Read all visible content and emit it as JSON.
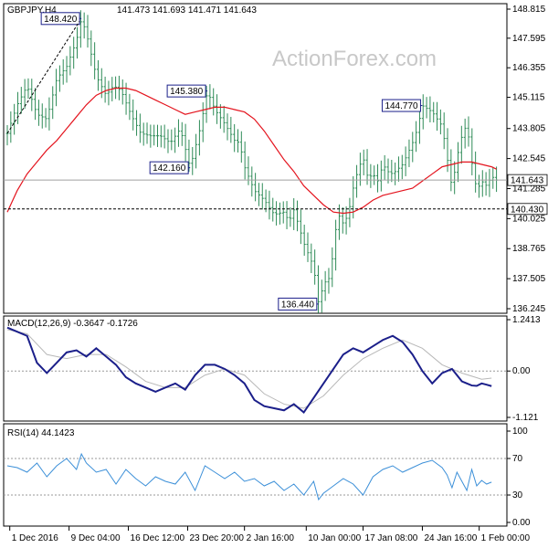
{
  "header": {
    "symbol_label": "GBPJPY,H4",
    "ohlc_text": "141.473 141.693 141.471 141.643",
    "watermark": "ActionForex.com"
  },
  "colors": {
    "background": "#ffffff",
    "grid": "#d0d0d0",
    "bars": "#2e8b57",
    "ma": "#e4141e",
    "macd_line": "#1b1f8a",
    "macd_signal": "#b8b8b8",
    "rsi_line": "#3b8fd8",
    "ref_line": "#000000",
    "watermark": "#c8c8c8"
  },
  "chart_data": [
    {
      "type": "line",
      "title": "GBPJPY,H4",
      "ylim": [
        136.245,
        148.815
      ],
      "yticks": [
        {
          "value": 148.815,
          "label": "148.815"
        },
        {
          "value": 147.595,
          "label": "147.595"
        },
        {
          "value": 146.355,
          "label": "146.355"
        },
        {
          "value": 145.115,
          "label": "145.115"
        },
        {
          "value": 143.805,
          "label": "143.805"
        },
        {
          "value": 142.545,
          "label": "142.545"
        },
        {
          "value": 141.285,
          "label": "141.285"
        },
        {
          "value": 140.025,
          "label": "140.025"
        },
        {
          "value": 138.765,
          "label": "138.765"
        },
        {
          "value": 137.505,
          "label": "137.505"
        },
        {
          "value": 136.245,
          "label": "136.245"
        }
      ],
      "last_price": {
        "value": 141.643,
        "label": "141.643"
      },
      "support": {
        "value": 140.43,
        "label": "140.430"
      },
      "xlim": [
        0,
        100
      ],
      "x_ticks": [
        {
          "x": 0.5,
          "label": "1 Dec 2016"
        },
        {
          "x": 12.5,
          "label": "9 Dec 04:00"
        },
        {
          "x": 24.5,
          "label": "16 Dec 12:00"
        },
        {
          "x": 36.5,
          "label": "23 Dec 20:00"
        },
        {
          "x": 48,
          "label": "2 Jan 16:00"
        },
        {
          "x": 60.5,
          "label": "10 Jan 00:00"
        },
        {
          "x": 72,
          "label": "17 Jan 08:00"
        },
        {
          "x": 84,
          "label": "24 Jan 16:00"
        },
        {
          "x": 95.5,
          "label": "1 Feb 00:00"
        }
      ],
      "price_series": {
        "name": "GBPJPY",
        "x": [
          0,
          2,
          4,
          6,
          8,
          10,
          12,
          14,
          15,
          16,
          18,
          20,
          21.5,
          23,
          25,
          27,
          29,
          31,
          33,
          35,
          37,
          39,
          40.5,
          42,
          44,
          46,
          47,
          48,
          50,
          52,
          54,
          56,
          57,
          58,
          60,
          62,
          63,
          64,
          65.5,
          66,
          67,
          68,
          69,
          70,
          71,
          72,
          73,
          74,
          75,
          76,
          77,
          78,
          80,
          82,
          83,
          84,
          86,
          88,
          89,
          90,
          91,
          92,
          93,
          94,
          95,
          96,
          97,
          98,
          99
        ],
        "y": [
          143.6,
          144.8,
          145.6,
          144.4,
          144.2,
          145.9,
          146.4,
          147.5,
          148.42,
          147.8,
          146.0,
          145.2,
          145.6,
          145.4,
          144.4,
          143.6,
          143.5,
          143.5,
          143.2,
          143.8,
          142.16,
          143.8,
          145.38,
          144.6,
          144.0,
          143.3,
          143.2,
          142.2,
          141.2,
          140.8,
          140.2,
          140.3,
          139.9,
          140.4,
          139.0,
          138.0,
          136.44,
          137.3,
          137.6,
          139.0,
          140.2,
          139.8,
          140.2,
          141.3,
          142.1,
          142.6,
          141.7,
          141.9,
          141.6,
          142.3,
          142.0,
          141.9,
          142.3,
          143.2,
          143.8,
          144.77,
          144.5,
          143.9,
          142.6,
          141.3,
          142.6,
          143.5,
          144.0,
          142.4,
          141.2,
          141.6,
          141.4,
          141.8,
          141.643
        ]
      },
      "ma_series": {
        "x": [
          0,
          2,
          4,
          6,
          8,
          10,
          12,
          14,
          16,
          18,
          20,
          22,
          24,
          26,
          28,
          30,
          32,
          34,
          36,
          38,
          40,
          42,
          44,
          46,
          48,
          50,
          52,
          54,
          56,
          58,
          60,
          62,
          64,
          66,
          68,
          70,
          72,
          74,
          76,
          78,
          80,
          82,
          84,
          86,
          88,
          90,
          92,
          94,
          96,
          98,
          99
        ],
        "y": [
          140.3,
          141.2,
          141.9,
          142.4,
          142.9,
          143.3,
          143.8,
          144.3,
          144.8,
          145.2,
          145.4,
          145.5,
          145.5,
          145.4,
          145.2,
          145.0,
          144.8,
          144.6,
          144.4,
          144.5,
          144.6,
          144.7,
          144.7,
          144.6,
          144.5,
          144.2,
          143.7,
          143.1,
          142.5,
          142.0,
          141.4,
          141.0,
          140.6,
          140.3,
          140.25,
          140.3,
          140.5,
          140.8,
          141.0,
          141.1,
          141.2,
          141.3,
          141.6,
          141.9,
          142.2,
          142.3,
          142.4,
          142.4,
          142.3,
          142.2,
          142.1
        ]
      },
      "annotations": [
        {
          "label": "148.420",
          "x": 15,
          "y": 148.42
        },
        {
          "label": "145.380",
          "x": 40.5,
          "y": 145.38
        },
        {
          "label": "142.160",
          "x": 37,
          "y": 142.16
        },
        {
          "label": "136.440",
          "x": 63,
          "y": 136.44
        },
        {
          "label": "144.770",
          "x": 84,
          "y": 144.77
        }
      ]
    },
    {
      "type": "line",
      "title": "MACD(12,26,9) -0.3647 -0.1726",
      "ylim": [
        -1.121,
        1.2413
      ],
      "yticks": [
        {
          "value": 1.2413,
          "label": "1.2413"
        },
        {
          "value": 0.0,
          "label": "0.00"
        },
        {
          "value": -1.121,
          "label": "-1.121"
        }
      ],
      "series": [
        {
          "name": "MACD",
          "x": [
            0,
            2,
            4,
            6,
            8,
            10,
            12,
            14,
            16,
            18,
            20,
            22,
            24,
            26,
            28,
            30,
            32,
            34,
            36,
            38,
            40,
            42,
            44,
            46,
            48,
            50,
            52,
            54,
            56,
            58,
            60,
            62,
            64,
            66,
            68,
            70,
            72,
            74,
            76,
            78,
            80,
            82,
            84,
            86,
            88,
            90,
            92,
            94,
            95,
            96,
            97,
            98
          ],
          "y": [
            1.05,
            0.95,
            0.85,
            0.2,
            -0.05,
            0.2,
            0.45,
            0.5,
            0.35,
            0.55,
            0.35,
            0.15,
            -0.15,
            -0.3,
            -0.4,
            -0.5,
            -0.4,
            -0.3,
            -0.45,
            -0.1,
            0.15,
            0.15,
            0.05,
            -0.1,
            -0.3,
            -0.7,
            -0.85,
            -0.9,
            -0.95,
            -0.8,
            -1.0,
            -0.65,
            -0.3,
            0.05,
            0.4,
            0.55,
            0.45,
            0.6,
            0.75,
            0.85,
            0.7,
            0.4,
            0.0,
            -0.3,
            -0.05,
            0.05,
            -0.25,
            -0.35,
            -0.36,
            -0.3,
            -0.33,
            -0.3647
          ]
        },
        {
          "name": "Signal",
          "x": [
            0,
            4,
            8,
            12,
            16,
            20,
            24,
            28,
            32,
            36,
            40,
            44,
            48,
            52,
            56,
            60,
            64,
            68,
            72,
            76,
            80,
            84,
            88,
            92,
            96,
            98
          ],
          "y": [
            1.0,
            0.9,
            0.4,
            0.3,
            0.4,
            0.4,
            0.1,
            -0.25,
            -0.4,
            -0.4,
            -0.1,
            0.05,
            -0.1,
            -0.55,
            -0.8,
            -0.9,
            -0.6,
            -0.1,
            0.3,
            0.55,
            0.75,
            0.55,
            0.15,
            -0.05,
            -0.2,
            -0.1726
          ]
        }
      ]
    },
    {
      "type": "line",
      "title": "RSI(14) 44.1423",
      "ylim": [
        0,
        100
      ],
      "yticks": [
        {
          "value": 100,
          "label": "100"
        },
        {
          "value": 70,
          "label": "70"
        },
        {
          "value": 30,
          "label": "30"
        },
        {
          "value": 0,
          "label": "0.00"
        }
      ],
      "levels": [
        70,
        30
      ],
      "series": [
        {
          "name": "RSI",
          "x": [
            0,
            2,
            4,
            6,
            8,
            10,
            12,
            14,
            15,
            16,
            18,
            20,
            22,
            24,
            26,
            28,
            30,
            32,
            34,
            36,
            38,
            40,
            42,
            44,
            46,
            48,
            50,
            52,
            54,
            56,
            58,
            60,
            62,
            63,
            64,
            66,
            68,
            70,
            72,
            74,
            76,
            78,
            80,
            82,
            84,
            86,
            88,
            89,
            90,
            91,
            92,
            93,
            94,
            95,
            96,
            97,
            98
          ],
          "y": [
            62,
            60,
            55,
            65,
            50,
            62,
            70,
            58,
            75,
            65,
            55,
            58,
            42,
            58,
            48,
            40,
            50,
            45,
            42,
            55,
            35,
            62,
            55,
            48,
            55,
            45,
            48,
            40,
            45,
            35,
            42,
            30,
            45,
            25,
            32,
            40,
            48,
            42,
            30,
            50,
            58,
            62,
            55,
            60,
            65,
            68,
            60,
            52,
            38,
            55,
            45,
            35,
            58,
            40,
            46,
            42,
            44.1423
          ]
        }
      ]
    }
  ]
}
